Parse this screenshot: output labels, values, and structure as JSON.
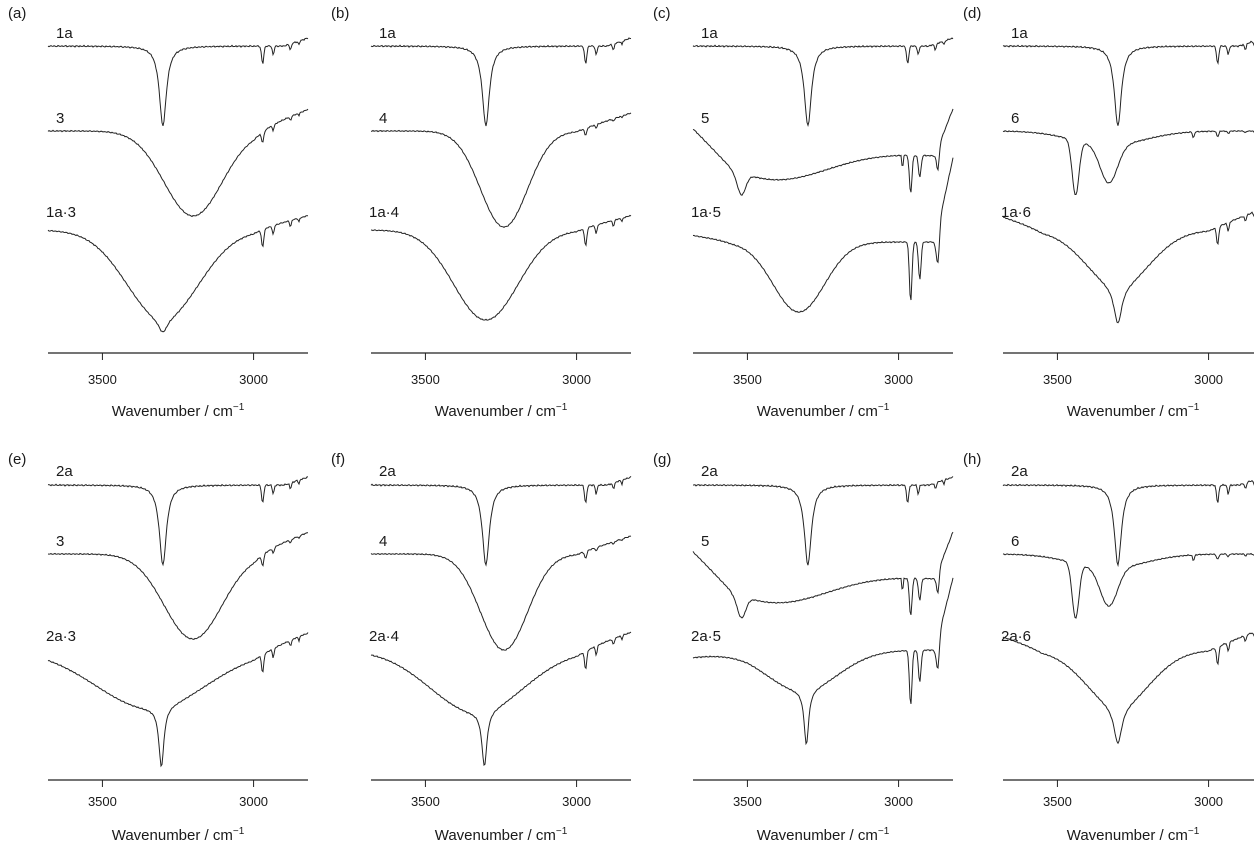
{
  "chart_data": {
    "type": "line",
    "x_axis": {
      "label_main": "Wavenumber / cm",
      "label_sup": "−1",
      "range": [
        3680,
        2820
      ],
      "reversed": true,
      "ticks": [
        {
          "value": 3500,
          "label": "3500"
        },
        {
          "value": 3000,
          "label": "3000"
        }
      ]
    },
    "panels": [
      {
        "label": "(a)",
        "traces": [
          {
            "name": "1a",
            "kind": "sharp"
          },
          {
            "name": "3",
            "kind": "broad3"
          },
          {
            "name": "1a·3",
            "kind": "complex3"
          }
        ]
      },
      {
        "label": "(b)",
        "traces": [
          {
            "name": "1a",
            "kind": "sharp"
          },
          {
            "name": "4",
            "kind": "broad4"
          },
          {
            "name": "1a·4",
            "kind": "complex4"
          }
        ]
      },
      {
        "label": "(c)",
        "traces": [
          {
            "name": "1a",
            "kind": "sharp"
          },
          {
            "name": "5",
            "kind": "broad5"
          },
          {
            "name": "1a·5",
            "kind": "complex5a"
          }
        ]
      },
      {
        "label": "(d)",
        "traces": [
          {
            "name": "1a",
            "kind": "sharp"
          },
          {
            "name": "6",
            "kind": "double6"
          },
          {
            "name": "1a·6",
            "kind": "complex6"
          }
        ]
      },
      {
        "label": "(e)",
        "traces": [
          {
            "name": "2a",
            "kind": "sharp"
          },
          {
            "name": "3",
            "kind": "broad3"
          },
          {
            "name": "2a·3",
            "kind": "complex3b"
          }
        ]
      },
      {
        "label": "(f)",
        "traces": [
          {
            "name": "2a",
            "kind": "sharp"
          },
          {
            "name": "4",
            "kind": "broad4"
          },
          {
            "name": "2a·4",
            "kind": "complex4b"
          }
        ]
      },
      {
        "label": "(g)",
        "traces": [
          {
            "name": "2a",
            "kind": "sharp"
          },
          {
            "name": "5",
            "kind": "broad5"
          },
          {
            "name": "2a·5",
            "kind": "complex5b"
          }
        ]
      },
      {
        "label": "(h)",
        "traces": [
          {
            "name": "2a",
            "kind": "sharp"
          },
          {
            "name": "6",
            "kind": "double6"
          },
          {
            "name": "2a·6",
            "kind": "complex6"
          }
        ]
      }
    ]
  }
}
